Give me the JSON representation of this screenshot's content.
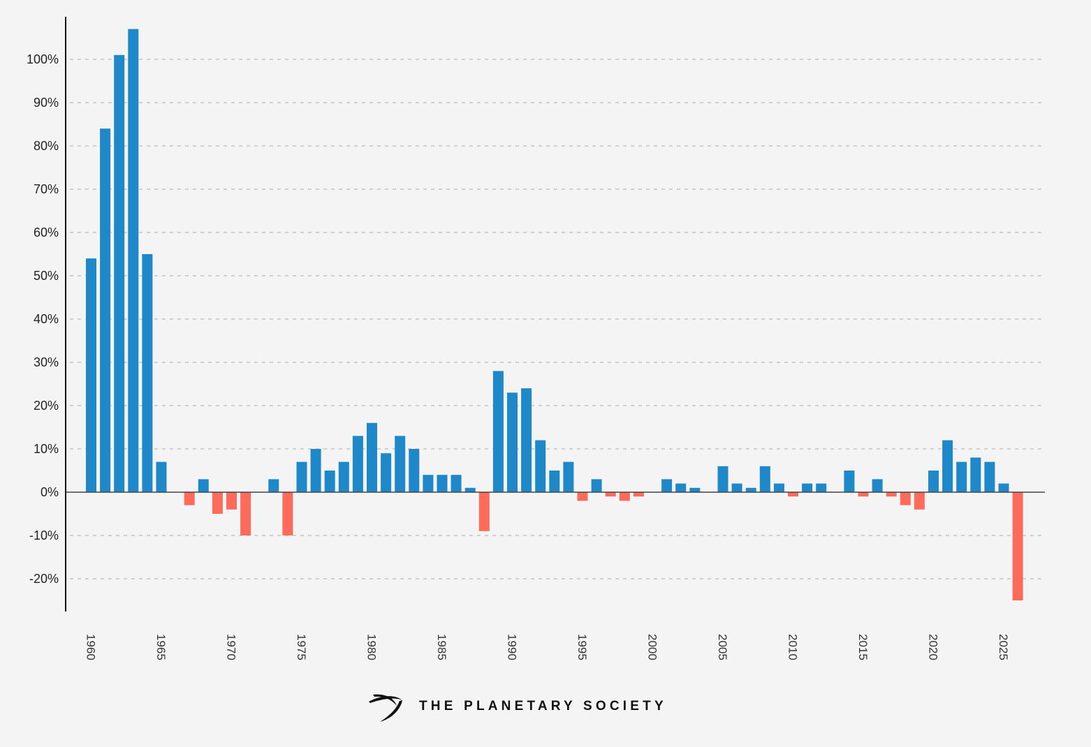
{
  "chart_data": {
    "type": "bar",
    "title": "",
    "xlabel": "",
    "ylabel": "",
    "ylim": [
      -27,
      110
    ],
    "y_ticks": [
      -20,
      -10,
      0,
      10,
      20,
      30,
      40,
      50,
      60,
      70,
      80,
      90,
      100
    ],
    "y_tick_labels": [
      "-20%",
      "-10%",
      "0%",
      "10%",
      "20%",
      "30%",
      "40%",
      "50%",
      "60%",
      "70%",
      "80%",
      "90%",
      "100%"
    ],
    "x_tick_labels": [
      "1960",
      "1965",
      "1970",
      "1975",
      "1980",
      "1985",
      "1990",
      "1995",
      "2000",
      "2005",
      "2010",
      "2015",
      "2020",
      "2025"
    ],
    "grid": "horizontal-dashed",
    "categories": [
      1960,
      1961,
      1962,
      1963,
      1964,
      1965,
      1966,
      1967,
      1968,
      1969,
      1970,
      1971,
      1972,
      1973,
      1974,
      1975,
      1976,
      1977,
      1978,
      1979,
      1980,
      1981,
      1982,
      1983,
      1984,
      1985,
      1986,
      1987,
      1988,
      1989,
      1990,
      1991,
      1992,
      1993,
      1994,
      1995,
      1996,
      1997,
      1998,
      1999,
      2000,
      2001,
      2002,
      2003,
      2004,
      2005,
      2006,
      2007,
      2008,
      2009,
      2010,
      2011,
      2012,
      2013,
      2014,
      2015,
      2016,
      2017,
      2018,
      2019,
      2020,
      2021,
      2022,
      2023,
      2024,
      2025,
      2026
    ],
    "values": [
      54,
      84,
      101,
      107,
      55,
      7,
      0,
      -3,
      3,
      -5,
      -4,
      -10,
      0,
      3,
      -10,
      7,
      10,
      5,
      7,
      13,
      16,
      9,
      13,
      10,
      4,
      4,
      4,
      1,
      -9,
      28,
      23,
      24,
      12,
      5,
      7,
      -2,
      3,
      -1,
      -2,
      -1,
      0,
      3,
      2,
      1,
      0,
      6,
      2,
      1,
      6,
      2,
      -1,
      2,
      2,
      0,
      5,
      -1,
      3,
      -1,
      -3,
      -4,
      5,
      12,
      7,
      8,
      7,
      2,
      -25
    ],
    "colors": {
      "positive": "#1e88c9",
      "negative": "#ff6b5a"
    }
  },
  "branding": {
    "name": "THE PLANETARY SOCIETY",
    "logo_icon": "planetary-society-orbit-logo"
  }
}
